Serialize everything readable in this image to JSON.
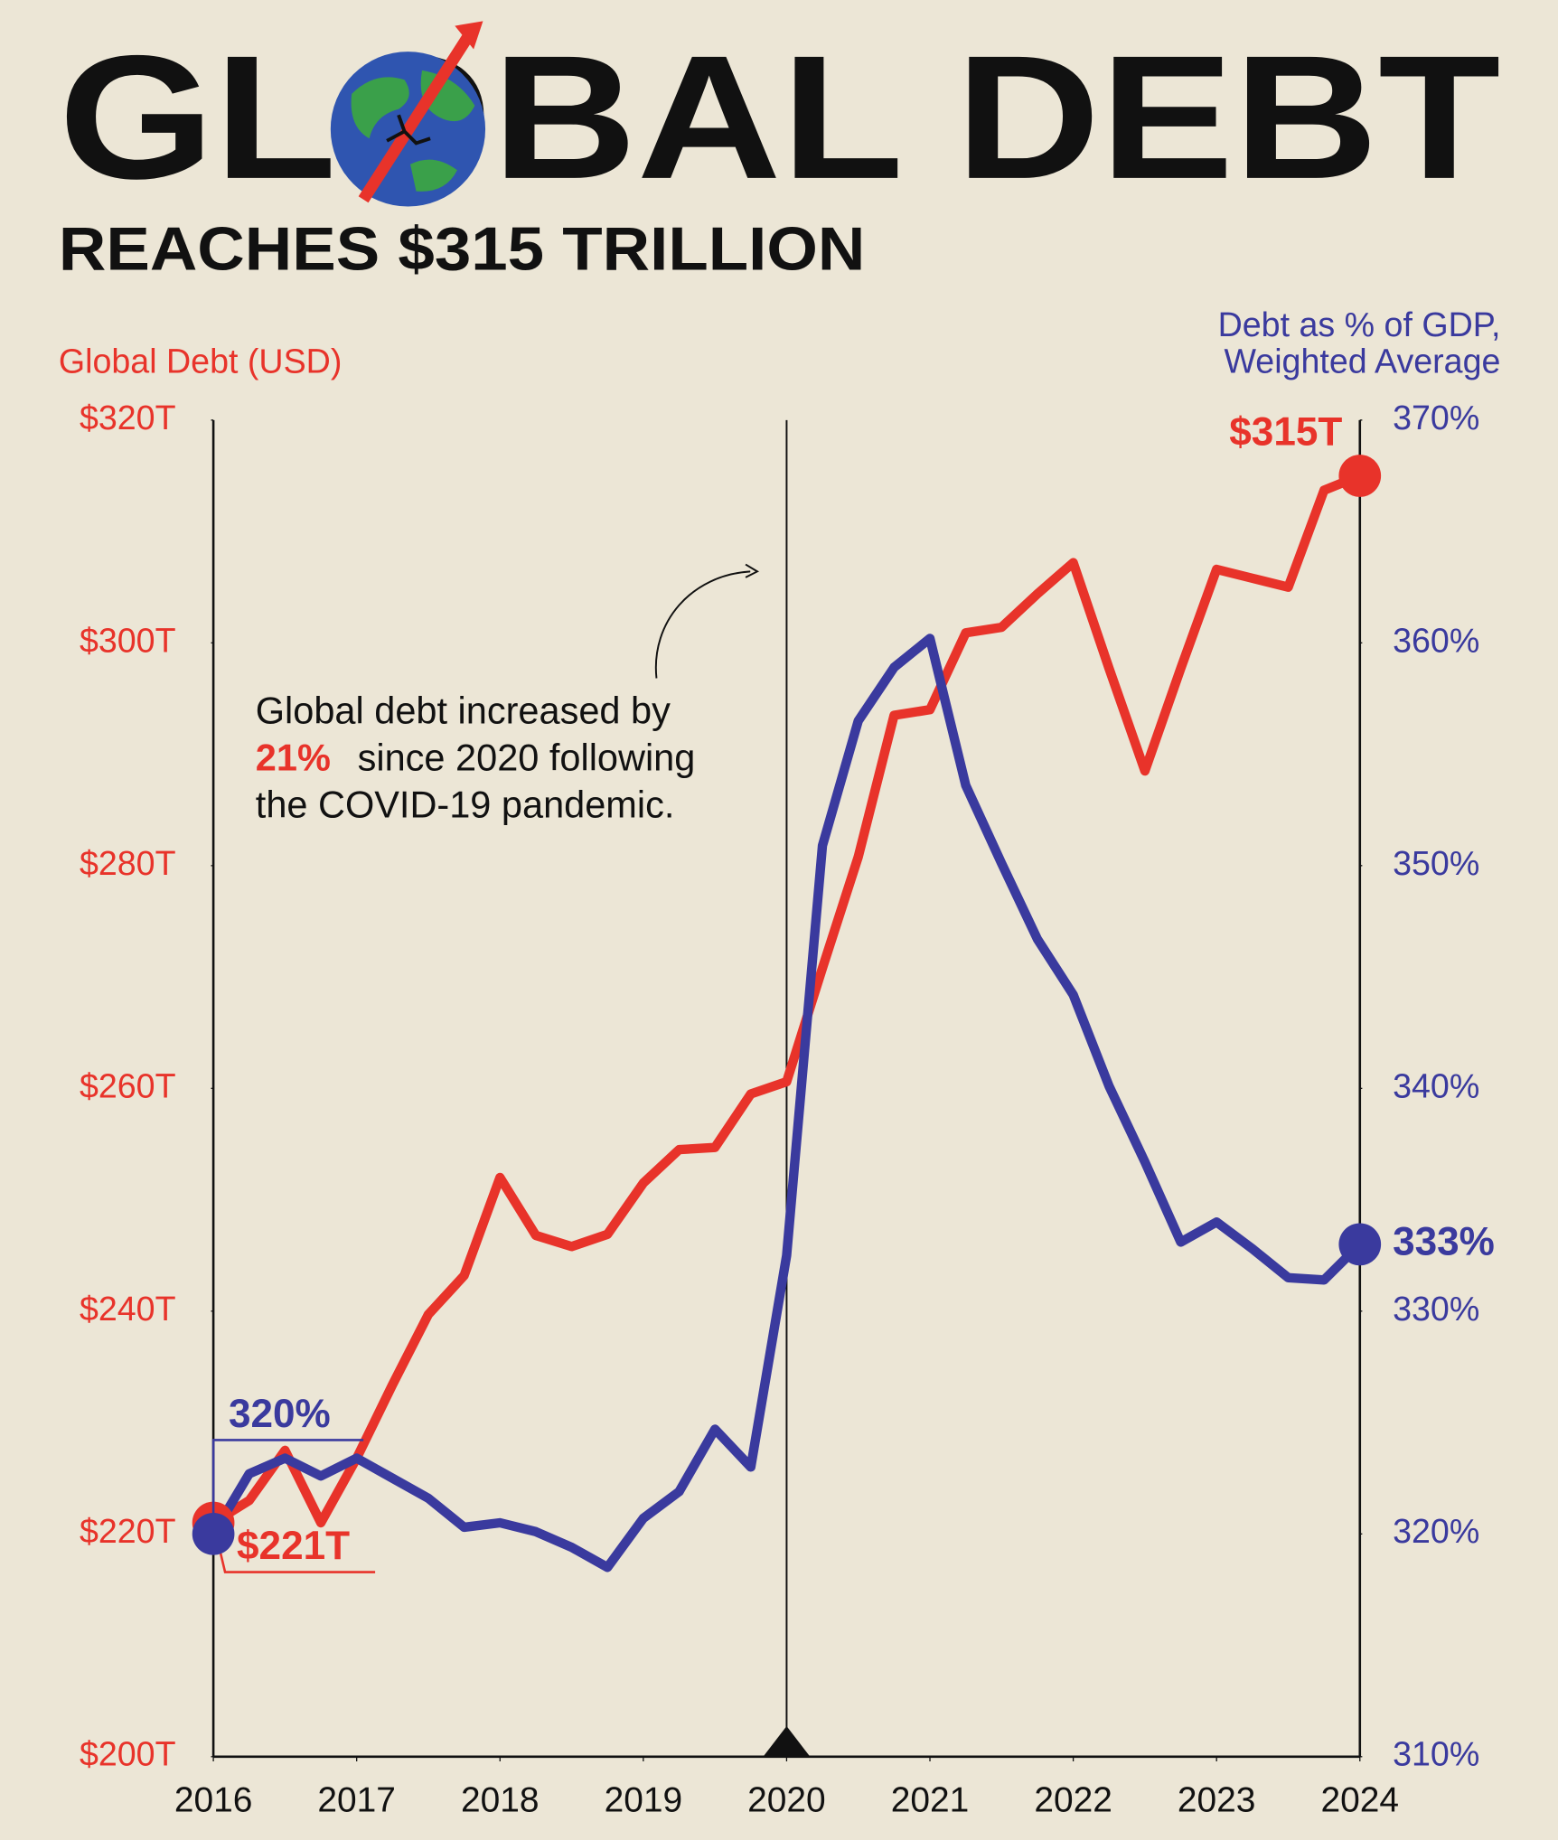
{
  "chart_data": {
    "type": "line",
    "title": "GLOBAL DEBT",
    "subtitle": "REACHES $315 TRILLION",
    "y_label": "Global Debt (USD)",
    "y2_label": [
      "Debt as % of GDP,",
      "Weighted Average"
    ],
    "annotation": {
      "lines": [
        "Global debt increased by",
        "since 2020 following",
        "the COVID-19 pandemic."
      ],
      "highlight": "21%"
    },
    "reference_x": 2020,
    "x": [
      2016,
      2016.25,
      2016.5,
      2016.75,
      2017,
      2017.25,
      2017.5,
      2017.75,
      2018,
      2018.25,
      2018.5,
      2018.75,
      2019,
      2019.25,
      2019.5,
      2019.75,
      2020,
      2020.25,
      2020.5,
      2020.75,
      2021,
      2021.25,
      2021.5,
      2021.75,
      2022,
      2022.25,
      2022.5,
      2022.75,
      2023,
      2023.25,
      2023.5,
      2023.75,
      2024
    ],
    "xlim": [
      2016,
      2024
    ],
    "xticks": [
      2016,
      2017,
      2018,
      2019,
      2020,
      2021,
      2022,
      2023,
      2024
    ],
    "ylim": [
      200,
      320
    ],
    "yticks": [
      {
        "value": 200,
        "label": "$200T"
      },
      {
        "value": 220,
        "label": "$220T"
      },
      {
        "value": 240,
        "label": "$240T"
      },
      {
        "value": 260,
        "label": "$260T"
      },
      {
        "value": 280,
        "label": "$280T"
      },
      {
        "value": 300,
        "label": "$300T"
      },
      {
        "value": 320,
        "label": "$320T"
      }
    ],
    "y2lim": [
      310,
      370
    ],
    "y2ticks": [
      {
        "value": 310,
        "label": "310%"
      },
      {
        "value": 320,
        "label": "320%"
      },
      {
        "value": 330,
        "label": "330%"
      },
      {
        "value": 340,
        "label": "340%"
      },
      {
        "value": 350,
        "label": "350%"
      },
      {
        "value": 360,
        "label": "360%"
      },
      {
        "value": 370,
        "label": "370%"
      }
    ],
    "series": [
      {
        "name": "Global Debt (USD)",
        "color": "#e8332a",
        "axis": "y",
        "values": [
          221,
          223,
          227.5,
          221,
          226.8,
          233.4,
          239.7,
          243.2,
          252,
          246.8,
          245.8,
          246.9,
          251.5,
          254.5,
          254.7,
          259.5,
          260.6,
          270.8,
          280.8,
          293.5,
          294,
          300.9,
          301.4,
          304.4,
          307.2,
          297.7,
          288.5,
          297.7,
          306.6,
          305.8,
          305,
          313.7,
          315
        ],
        "value_labels": [
          "$221T",
          null,
          null,
          null,
          null,
          null,
          null,
          null,
          null,
          null,
          null,
          null,
          null,
          null,
          null,
          null,
          null,
          null,
          null,
          null,
          null,
          null,
          null,
          null,
          null,
          null,
          null,
          null,
          null,
          null,
          null,
          null,
          "$315T"
        ]
      },
      {
        "name": "Debt as % of GDP, Weighted Average",
        "color": "#3a3a9e",
        "axis": "y2",
        "values": [
          320,
          322.7,
          323.4,
          322.6,
          323.4,
          322.5,
          321.6,
          320.3,
          320.5,
          320.1,
          319.4,
          318.5,
          320.7,
          321.9,
          324.7,
          323,
          332.5,
          350.9,
          356.5,
          358.9,
          360.2,
          353.6,
          350.1,
          346.7,
          344.2,
          340.1,
          336.7,
          333.1,
          334,
          332.8,
          331.5,
          331.4,
          333
        ],
        "value_labels": [
          "320%",
          null,
          null,
          null,
          null,
          null,
          null,
          null,
          null,
          null,
          null,
          null,
          null,
          null,
          null,
          null,
          null,
          null,
          null,
          null,
          null,
          null,
          null,
          null,
          null,
          null,
          null,
          null,
          null,
          null,
          null,
          null,
          "333%"
        ]
      }
    ]
  }
}
